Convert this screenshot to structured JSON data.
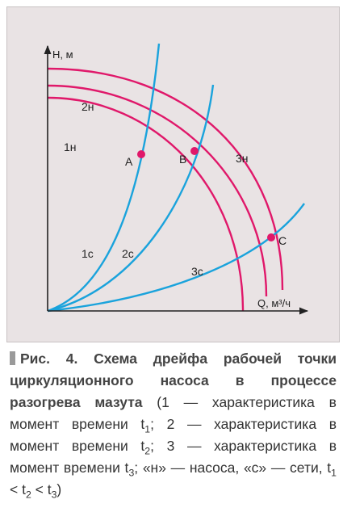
{
  "figure": {
    "axis": {
      "y_label": "H, м",
      "x_label": "Q, м³/ч"
    },
    "curves": {
      "pump": [
        {
          "id": "1н",
          "label": "1н",
          "color": "#e0186a"
        },
        {
          "id": "2н",
          "label": "2н",
          "color": "#e0186a"
        },
        {
          "id": "3н",
          "label": "3н",
          "color": "#e0186a"
        }
      ],
      "network": [
        {
          "id": "1с",
          "label": "1с",
          "color": "#1aa3dc"
        },
        {
          "id": "2с",
          "label": "2с",
          "color": "#1aa3dc"
        },
        {
          "id": "3с",
          "label": "3с",
          "color": "#1aa3dc"
        }
      ]
    },
    "points": [
      {
        "id": "A",
        "label": "A",
        "color": "#e0186a"
      },
      {
        "id": "B",
        "label": "B",
        "color": "#e0186a"
      },
      {
        "id": "C",
        "label": "C",
        "color": "#e0186a"
      }
    ],
    "colors": {
      "pump": "#e0186a",
      "network": "#1aa3dc",
      "axis": "#222222",
      "background": "#e9e3e4"
    }
  },
  "caption": {
    "title": "Рис. 4. Схема дрейфа рабочей точки циркуляционного насоса в процессе разогрева мазута",
    "body": {
      "p1": " (1 — характеристика в момент времени t",
      "s1": "1",
      "p2": "; 2 — характеристика в момент времени t",
      "s2": "2",
      "p3": "; 3 — характеристика в момент времени t",
      "s3": "3",
      "p4": "; «н» — насоса, «с» — сети, t",
      "s4": "1",
      "p5": " < t",
      "s5": "2",
      "p6": " < t",
      "s6": "3",
      "p7": ")"
    }
  }
}
